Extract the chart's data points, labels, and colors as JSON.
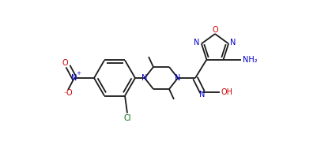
{
  "bg_color": "#ffffff",
  "line_color": "#1a1a1a",
  "n_color": "#0000cc",
  "o_color": "#cc0000",
  "cl_color": "#006600",
  "line_width": 1.3,
  "font_size": 7.0,
  "fig_width": 4.2,
  "fig_height": 1.84,
  "dpi": 100,
  "xlim": [
    0,
    42
  ],
  "ylim": [
    0,
    18.4
  ]
}
